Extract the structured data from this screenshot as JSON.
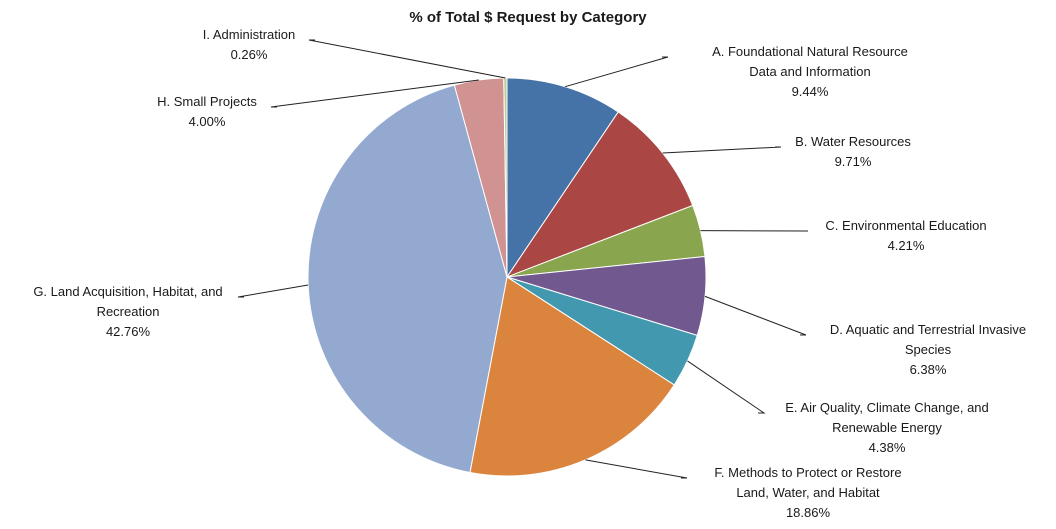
{
  "chart_data": {
    "type": "pie",
    "title": "% of Total $ Request by Category",
    "slices": [
      {
        "lines": [
          "A. Foundational Natural Resource",
          "Data and Information"
        ],
        "value_label": "9.44%",
        "value": 9.44,
        "color": "#4572A7"
      },
      {
        "lines": [
          "B. Water Resources"
        ],
        "value_label": "9.71%",
        "value": 9.71,
        "color": "#AA4643"
      },
      {
        "lines": [
          "C. Environmental Education"
        ],
        "value_label": "4.21%",
        "value": 4.21,
        "color": "#89A54E"
      },
      {
        "lines": [
          "D. Aquatic and Terrestrial Invasive",
          "Species"
        ],
        "value_label": "6.38%",
        "value": 6.38,
        "color": "#71588F"
      },
      {
        "lines": [
          "E. Air Quality, Climate Change, and",
          "Renewable Energy"
        ],
        "value_label": "4.38%",
        "value": 4.38,
        "color": "#4198AF"
      },
      {
        "lines": [
          "F. Methods to Protect or Restore",
          "Land, Water, and Habitat"
        ],
        "value_label": "18.86%",
        "value": 18.86,
        "color": "#DB843D"
      },
      {
        "lines": [
          "G. Land Acquisition, Habitat, and",
          "Recreation"
        ],
        "value_label": "42.76%",
        "value": 42.76,
        "color": "#93A9CF"
      },
      {
        "lines": [
          "H. Small Projects"
        ],
        "value_label": "4.00%",
        "value": 4.0,
        "color": "#D19392"
      },
      {
        "lines": [
          "I. Administration"
        ],
        "value_label": "0.26%",
        "value": 0.26,
        "color": "#B9CD96"
      }
    ]
  }
}
